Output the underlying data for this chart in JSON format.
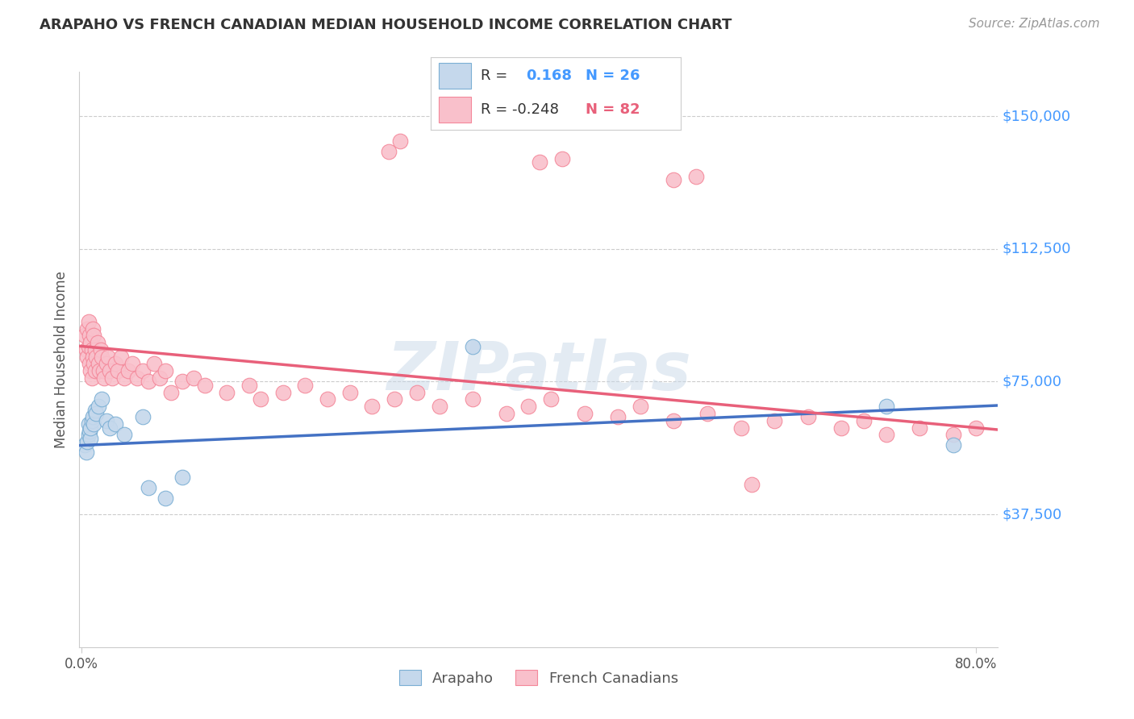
{
  "title": "ARAPAHO VS FRENCH CANADIAN MEDIAN HOUSEHOLD INCOME CORRELATION CHART",
  "source": "Source: ZipAtlas.com",
  "ylabel": "Median Household Income",
  "ytick_labels": [
    "$37,500",
    "$75,000",
    "$112,500",
    "$150,000"
  ],
  "ytick_values": [
    37500,
    75000,
    112500,
    150000
  ],
  "ymin": 0,
  "ymax": 162500,
  "xmin": -0.002,
  "xmax": 0.82,
  "watermark": "ZIPatlas",
  "blue_color": "#7BAFD4",
  "pink_color": "#F4889A",
  "blue_fill": "#C5D8EC",
  "pink_fill": "#F9C0CB",
  "blue_line_color": "#4472C4",
  "pink_line_color": "#E8607A",
  "arapaho_x": [
    0.003,
    0.004,
    0.005,
    0.006,
    0.006,
    0.007,
    0.008,
    0.008,
    0.009,
    0.01,
    0.011,
    0.012,
    0.013,
    0.015,
    0.018,
    0.022,
    0.025,
    0.03,
    0.038,
    0.055,
    0.06,
    0.075,
    0.09,
    0.35,
    0.72,
    0.78
  ],
  "arapaho_y": [
    57000,
    55000,
    58000,
    60000,
    63000,
    61000,
    59000,
    62000,
    64000,
    65000,
    63000,
    67000,
    66000,
    68000,
    70000,
    64000,
    62000,
    63000,
    60000,
    65000,
    45000,
    42000,
    48000,
    85000,
    68000,
    57000
  ],
  "french_x": [
    0.003,
    0.004,
    0.005,
    0.005,
    0.006,
    0.006,
    0.007,
    0.007,
    0.008,
    0.008,
    0.009,
    0.009,
    0.01,
    0.01,
    0.011,
    0.011,
    0.012,
    0.012,
    0.013,
    0.014,
    0.015,
    0.016,
    0.017,
    0.018,
    0.019,
    0.02,
    0.022,
    0.024,
    0.025,
    0.027,
    0.03,
    0.032,
    0.035,
    0.038,
    0.042,
    0.045,
    0.05,
    0.055,
    0.06,
    0.065,
    0.07,
    0.075,
    0.08,
    0.09,
    0.1,
    0.11,
    0.13,
    0.15,
    0.16,
    0.18,
    0.2,
    0.22,
    0.24,
    0.26,
    0.28,
    0.3,
    0.32,
    0.35,
    0.38,
    0.4,
    0.42,
    0.45,
    0.48,
    0.5,
    0.53,
    0.56,
    0.59,
    0.62,
    0.65,
    0.68,
    0.7,
    0.72,
    0.75,
    0.78,
    0.8,
    0.275,
    0.41,
    0.53,
    0.285,
    0.43,
    0.55,
    0.6
  ],
  "french_y": [
    88000,
    84000,
    82000,
    90000,
    85000,
    92000,
    88000,
    80000,
    86000,
    78000,
    84000,
    76000,
    82000,
    90000,
    80000,
    88000,
    84000,
    78000,
    82000,
    86000,
    80000,
    78000,
    84000,
    82000,
    78000,
    76000,
    80000,
    82000,
    78000,
    76000,
    80000,
    78000,
    82000,
    76000,
    78000,
    80000,
    76000,
    78000,
    75000,
    80000,
    76000,
    78000,
    72000,
    75000,
    76000,
    74000,
    72000,
    74000,
    70000,
    72000,
    74000,
    70000,
    72000,
    68000,
    70000,
    72000,
    68000,
    70000,
    66000,
    68000,
    70000,
    66000,
    65000,
    68000,
    64000,
    66000,
    62000,
    64000,
    65000,
    62000,
    64000,
    60000,
    62000,
    60000,
    62000,
    140000,
    137000,
    132000,
    143000,
    138000,
    133000,
    46000
  ]
}
